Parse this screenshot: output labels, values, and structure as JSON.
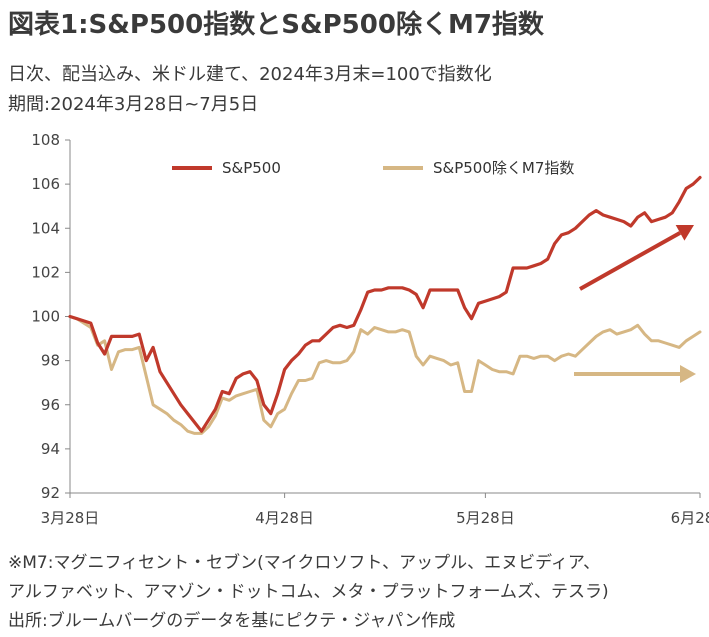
{
  "header": {
    "title": "図表1:S&P500指数とS&P500除くM7指数",
    "subtitle1": "日次、配当込み、米ドル建て、2024年3月末=100で指数化",
    "subtitle2": "期間:2024年3月28日~7月5日"
  },
  "notes": {
    "line1": "※M7:マグニフィセント・セブン(マイクロソフト、アップル、エヌビディア、",
    "line2": "アルファベット、アマゾン・ドットコム、メタ・プラットフォームズ、テスラ)",
    "line3": "出所:ブルームバーグのデータを基にピクテ・ジャパン作成"
  },
  "chart_data": {
    "type": "line",
    "x_tick_labels": [
      "3月28日",
      "4月28日",
      "5月28日",
      "6月28日"
    ],
    "ylim": [
      92,
      108
    ],
    "y_ticks": [
      92,
      94,
      96,
      98,
      100,
      102,
      104,
      106,
      108
    ],
    "legend_position": "top-center",
    "annotations": {
      "sp500_trend_arrow": "up",
      "ex_m7_trend_arrow": "flat"
    },
    "series": [
      {
        "name": "S&P500",
        "color": "#c0392b",
        "values": [
          100.0,
          99.9,
          99.8,
          99.7,
          98.8,
          98.3,
          99.1,
          99.1,
          99.1,
          99.1,
          99.2,
          98.0,
          98.6,
          97.5,
          97.0,
          96.5,
          96.0,
          95.6,
          95.2,
          94.8,
          95.3,
          95.8,
          96.6,
          96.5,
          97.2,
          97.4,
          97.5,
          97.1,
          96.0,
          95.6,
          96.5,
          97.6,
          98.0,
          98.3,
          98.7,
          98.9,
          98.9,
          99.2,
          99.5,
          99.6,
          99.5,
          99.6,
          100.3,
          101.1,
          101.2,
          101.2,
          101.3,
          101.3,
          101.3,
          101.2,
          101.0,
          100.4,
          101.2,
          101.2,
          101.2,
          101.2,
          101.2,
          100.4,
          99.9,
          100.6,
          100.7,
          100.8,
          100.9,
          101.1,
          102.2,
          102.2,
          102.2,
          102.3,
          102.4,
          102.6,
          103.3,
          103.7,
          103.8,
          104.0,
          104.3,
          104.6,
          104.8,
          104.6,
          104.5,
          104.4,
          104.3,
          104.1,
          104.5,
          104.7,
          104.3,
          104.4,
          104.5,
          104.7,
          105.2,
          105.8,
          106.0,
          106.3
        ]
      },
      {
        "name": "S&P500除くM7指数",
        "color": "#d6b784",
        "values": [
          100.0,
          99.9,
          99.7,
          99.5,
          98.7,
          98.9,
          97.6,
          98.4,
          98.5,
          98.5,
          98.6,
          97.3,
          96.0,
          95.8,
          95.6,
          95.3,
          95.1,
          94.8,
          94.7,
          94.7,
          95.0,
          95.5,
          96.3,
          96.2,
          96.4,
          96.5,
          96.6,
          96.7,
          95.3,
          95.0,
          95.6,
          95.8,
          96.5,
          97.1,
          97.1,
          97.2,
          97.9,
          98.0,
          97.9,
          97.9,
          98.0,
          98.4,
          99.4,
          99.2,
          99.5,
          99.4,
          99.3,
          99.3,
          99.4,
          99.3,
          98.2,
          97.8,
          98.2,
          98.1,
          98.0,
          97.8,
          97.9,
          96.6,
          96.6,
          98.0,
          97.8,
          97.6,
          97.5,
          97.5,
          97.4,
          98.2,
          98.2,
          98.1,
          98.2,
          98.2,
          98.0,
          98.2,
          98.3,
          98.2,
          98.5,
          98.8,
          99.1,
          99.3,
          99.4,
          99.2,
          99.3,
          99.4,
          99.6,
          99.2,
          98.9,
          98.9,
          98.8,
          98.7,
          98.6,
          98.9,
          99.1,
          99.3
        ]
      }
    ]
  }
}
